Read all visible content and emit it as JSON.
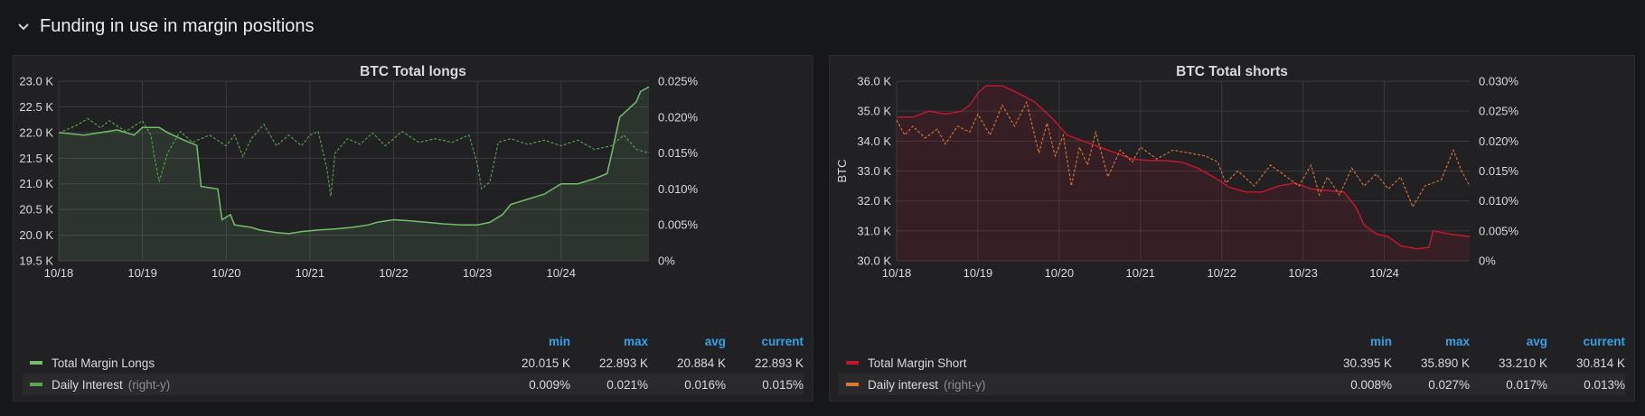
{
  "row": {
    "title": "Funding in use in margin positions",
    "icon": "chevron-down-icon"
  },
  "colors": {
    "longs": "#73bf69",
    "longs_interest": "#56a64b",
    "shorts": "#c4162a",
    "shorts_interest": "#e0752d",
    "legend_header": "#33a2e5"
  },
  "panels": [
    {
      "title": "BTC Total longs",
      "ylabel": "",
      "legend": {
        "headers": [
          "min",
          "max",
          "avg",
          "current"
        ],
        "rows": [
          {
            "name": "Total Margin Longs",
            "hint": "",
            "min": "20.015 K",
            "max": "22.893 K",
            "avg": "20.884 K",
            "current": "22.893 K"
          },
          {
            "name": "Daily Interest",
            "hint": "(right-y)",
            "min": "0.009%",
            "max": "0.021%",
            "avg": "0.016%",
            "current": "0.015%"
          }
        ]
      }
    },
    {
      "title": "BTC Total shorts",
      "ylabel": "BTC",
      "legend": {
        "headers": [
          "min",
          "max",
          "avg",
          "current"
        ],
        "rows": [
          {
            "name": "Total Margin Short",
            "hint": "",
            "min": "30.395 K",
            "max": "35.890 K",
            "avg": "33.210 K",
            "current": "30.814 K"
          },
          {
            "name": "Daily interest",
            "hint": "(right-y)",
            "min": "0.008%",
            "max": "0.027%",
            "avg": "0.017%",
            "current": "0.013%"
          }
        ]
      }
    }
  ],
  "chart_data": [
    {
      "type": "area",
      "title": "BTC Total longs",
      "x_tick_labels": [
        "10/18",
        "10/19",
        "10/20",
        "10/21",
        "10/22",
        "10/23",
        "10/24"
      ],
      "x_range": [
        0,
        7.05
      ],
      "y_left": {
        "ticks": [
          "19.5 K",
          "20.0 K",
          "20.5 K",
          "21.0 K",
          "21.5 K",
          "22.0 K",
          "22.5 K",
          "23.0 K"
        ],
        "range": [
          19.5,
          23.0
        ]
      },
      "y_right": {
        "ticks": [
          "0%",
          "0.005%",
          "0.010%",
          "0.015%",
          "0.020%",
          "0.025%"
        ],
        "range": [
          0,
          0.025
        ]
      },
      "grid": true,
      "series": [
        {
          "name": "Total Margin Longs",
          "axis": "left",
          "style": "solid-area",
          "points": [
            [
              0,
              22.0
            ],
            [
              0.3,
              21.95
            ],
            [
              0.5,
              22.0
            ],
            [
              0.7,
              22.05
            ],
            [
              0.9,
              21.95
            ],
            [
              1.0,
              22.1
            ],
            [
              1.2,
              22.1
            ],
            [
              1.3,
              22.0
            ],
            [
              1.5,
              21.85
            ],
            [
              1.65,
              21.75
            ],
            [
              1.7,
              20.95
            ],
            [
              1.9,
              20.9
            ],
            [
              1.95,
              20.3
            ],
            [
              2.05,
              20.4
            ],
            [
              2.1,
              20.2
            ],
            [
              2.3,
              20.15
            ],
            [
              2.4,
              20.1
            ],
            [
              2.6,
              20.05
            ],
            [
              2.75,
              20.03
            ],
            [
              2.9,
              20.07
            ],
            [
              3.1,
              20.1
            ],
            [
              3.3,
              20.12
            ],
            [
              3.5,
              20.15
            ],
            [
              3.7,
              20.2
            ],
            [
              3.8,
              20.25
            ],
            [
              4.0,
              20.3
            ],
            [
              4.2,
              20.28
            ],
            [
              4.4,
              20.25
            ],
            [
              4.6,
              20.22
            ],
            [
              4.8,
              20.2
            ],
            [
              5.0,
              20.2
            ],
            [
              5.15,
              20.25
            ],
            [
              5.3,
              20.4
            ],
            [
              5.4,
              20.6
            ],
            [
              5.6,
              20.7
            ],
            [
              5.8,
              20.8
            ],
            [
              6.0,
              21.0
            ],
            [
              6.2,
              21.0
            ],
            [
              6.4,
              21.1
            ],
            [
              6.55,
              21.2
            ],
            [
              6.62,
              21.7
            ],
            [
              6.7,
              22.3
            ],
            [
              6.8,
              22.45
            ],
            [
              6.9,
              22.6
            ],
            [
              6.95,
              22.8
            ],
            [
              7.05,
              22.89
            ]
          ]
        },
        {
          "name": "Daily Interest",
          "axis": "right",
          "style": "dashed",
          "points": [
            [
              0,
              0.0178
            ],
            [
              0.2,
              0.0188
            ],
            [
              0.35,
              0.0198
            ],
            [
              0.5,
              0.0185
            ],
            [
              0.6,
              0.0195
            ],
            [
              0.8,
              0.018
            ],
            [
              1.0,
              0.0195
            ],
            [
              1.1,
              0.0175
            ],
            [
              1.15,
              0.014
            ],
            [
              1.2,
              0.011
            ],
            [
              1.3,
              0.015
            ],
            [
              1.45,
              0.018
            ],
            [
              1.6,
              0.0165
            ],
            [
              1.8,
              0.0175
            ],
            [
              2.0,
              0.016
            ],
            [
              2.1,
              0.0175
            ],
            [
              2.2,
              0.0145
            ],
            [
              2.3,
              0.017
            ],
            [
              2.45,
              0.019
            ],
            [
              2.6,
              0.016
            ],
            [
              2.75,
              0.0175
            ],
            [
              2.9,
              0.016
            ],
            [
              3.0,
              0.0175
            ],
            [
              3.1,
              0.018
            ],
            [
              3.2,
              0.013
            ],
            [
              3.25,
              0.009
            ],
            [
              3.3,
              0.015
            ],
            [
              3.45,
              0.017
            ],
            [
              3.6,
              0.0162
            ],
            [
              3.75,
              0.0178
            ],
            [
              3.9,
              0.016
            ],
            [
              4.1,
              0.018
            ],
            [
              4.3,
              0.0165
            ],
            [
              4.5,
              0.017
            ],
            [
              4.7,
              0.0165
            ],
            [
              4.9,
              0.0175
            ],
            [
              5.0,
              0.0135
            ],
            [
              5.05,
              0.01
            ],
            [
              5.15,
              0.011
            ],
            [
              5.25,
              0.0165
            ],
            [
              5.4,
              0.017
            ],
            [
              5.6,
              0.0162
            ],
            [
              5.8,
              0.0168
            ],
            [
              6.0,
              0.016
            ],
            [
              6.2,
              0.0168
            ],
            [
              6.4,
              0.0155
            ],
            [
              6.6,
              0.016
            ],
            [
              6.75,
              0.0175
            ],
            [
              6.9,
              0.0155
            ],
            [
              7.05,
              0.015
            ]
          ]
        }
      ]
    },
    {
      "type": "area",
      "title": "BTC Total shorts",
      "ylabel": "BTC",
      "x_tick_labels": [
        "10/18",
        "10/19",
        "10/20",
        "10/21",
        "10/22",
        "10/23",
        "10/24"
      ],
      "x_range": [
        0,
        7.05
      ],
      "y_left": {
        "ticks": [
          "30.0 K",
          "31.0 K",
          "32.0 K",
          "33.0 K",
          "34.0 K",
          "35.0 K",
          "36.0 K"
        ],
        "range": [
          30.0,
          36.0
        ]
      },
      "y_right": {
        "ticks": [
          "0%",
          "0.005%",
          "0.010%",
          "0.015%",
          "0.020%",
          "0.025%",
          "0.030%"
        ],
        "range": [
          0,
          0.03
        ]
      },
      "grid": true,
      "series": [
        {
          "name": "Total Margin Short",
          "axis": "left",
          "style": "solid-area",
          "points": [
            [
              0,
              34.8
            ],
            [
              0.2,
              34.8
            ],
            [
              0.4,
              35.0
            ],
            [
              0.6,
              34.9
            ],
            [
              0.8,
              35.0
            ],
            [
              0.9,
              35.2
            ],
            [
              1.0,
              35.6
            ],
            [
              1.1,
              35.85
            ],
            [
              1.3,
              35.85
            ],
            [
              1.5,
              35.6
            ],
            [
              1.7,
              35.3
            ],
            [
              1.9,
              34.8
            ],
            [
              2.1,
              34.2
            ],
            [
              2.3,
              34.0
            ],
            [
              2.5,
              33.8
            ],
            [
              2.7,
              33.6
            ],
            [
              2.9,
              33.4
            ],
            [
              3.1,
              33.35
            ],
            [
              3.3,
              33.35
            ],
            [
              3.5,
              33.3
            ],
            [
              3.7,
              33.1
            ],
            [
              3.9,
              32.8
            ],
            [
              4.1,
              32.45
            ],
            [
              4.3,
              32.3
            ],
            [
              4.5,
              32.3
            ],
            [
              4.7,
              32.5
            ],
            [
              4.9,
              32.6
            ],
            [
              5.1,
              32.4
            ],
            [
              5.3,
              32.35
            ],
            [
              5.5,
              32.3
            ],
            [
              5.65,
              31.8
            ],
            [
              5.75,
              31.2
            ],
            [
              5.9,
              30.9
            ],
            [
              6.05,
              30.8
            ],
            [
              6.2,
              30.5
            ],
            [
              6.4,
              30.4
            ],
            [
              6.55,
              30.45
            ],
            [
              6.6,
              31.0
            ],
            [
              6.8,
              30.9
            ],
            [
              7.05,
              30.81
            ]
          ]
        },
        {
          "name": "Daily interest",
          "axis": "right",
          "style": "dashed",
          "points": [
            [
              0,
              0.0235
            ],
            [
              0.1,
              0.021
            ],
            [
              0.2,
              0.0225
            ],
            [
              0.35,
              0.0205
            ],
            [
              0.5,
              0.022
            ],
            [
              0.6,
              0.0195
            ],
            [
              0.75,
              0.0225
            ],
            [
              0.9,
              0.0215
            ],
            [
              1.0,
              0.0245
            ],
            [
              1.15,
              0.021
            ],
            [
              1.3,
              0.026
            ],
            [
              1.45,
              0.0225
            ],
            [
              1.6,
              0.0265
            ],
            [
              1.75,
              0.018
            ],
            [
              1.85,
              0.023
            ],
            [
              1.95,
              0.0175
            ],
            [
              2.05,
              0.021
            ],
            [
              2.15,
              0.0125
            ],
            [
              2.25,
              0.019
            ],
            [
              2.35,
              0.016
            ],
            [
              2.45,
              0.0215
            ],
            [
              2.6,
              0.014
            ],
            [
              2.75,
              0.0185
            ],
            [
              2.9,
              0.0165
            ],
            [
              3.0,
              0.019
            ],
            [
              3.2,
              0.017
            ],
            [
              3.4,
              0.0185
            ],
            [
              3.6,
              0.018
            ],
            [
              3.8,
              0.0175
            ],
            [
              3.95,
              0.0165
            ],
            [
              4.05,
              0.013
            ],
            [
              4.2,
              0.015
            ],
            [
              4.4,
              0.0125
            ],
            [
              4.6,
              0.016
            ],
            [
              4.8,
              0.014
            ],
            [
              4.95,
              0.0125
            ],
            [
              5.1,
              0.016
            ],
            [
              5.2,
              0.011
            ],
            [
              5.3,
              0.014
            ],
            [
              5.45,
              0.011
            ],
            [
              5.6,
              0.0155
            ],
            [
              5.75,
              0.0125
            ],
            [
              5.9,
              0.0145
            ],
            [
              6.05,
              0.012
            ],
            [
              6.2,
              0.014
            ],
            [
              6.35,
              0.009
            ],
            [
              6.5,
              0.0125
            ],
            [
              6.7,
              0.0135
            ],
            [
              6.85,
              0.0185
            ],
            [
              6.95,
              0.015
            ],
            [
              7.05,
              0.0125
            ]
          ]
        }
      ]
    }
  ]
}
